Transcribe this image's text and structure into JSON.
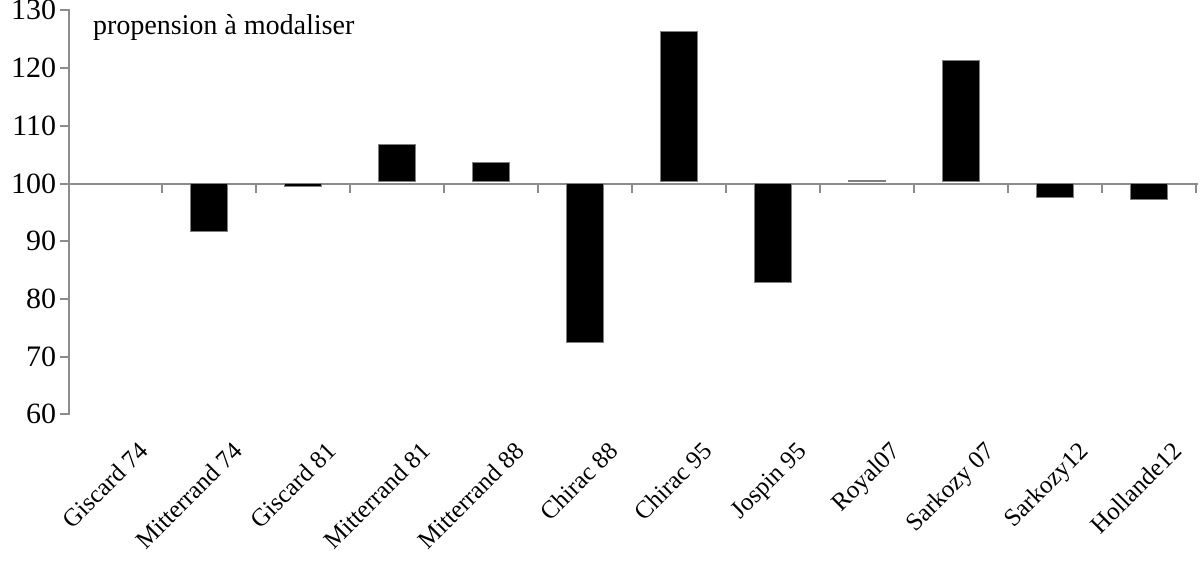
{
  "chart_data": {
    "type": "bar",
    "title": "propension à modaliser",
    "categories": [
      "Giscard 74",
      "Mitterrand 74",
      "Giscard 81",
      "Mitterrand 81",
      "Mitterrand 88",
      "Chirac 88",
      "Chirac 95",
      "Jospin 95",
      "Royal07",
      "Sarkozy 07",
      "Sarkozy12",
      "Hollande12"
    ],
    "values": [
      100,
      91.5,
      99.3,
      106.7,
      103.5,
      72.2,
      126.3,
      82.5,
      100.5,
      121.3,
      97.3,
      97.0
    ],
    "baseline": 100,
    "ylim": [
      60,
      130
    ],
    "yticks": [
      130,
      120,
      110,
      100,
      90,
      80,
      70,
      60
    ],
    "xlabel": "",
    "ylabel": "",
    "legend": "none",
    "grid": "off",
    "bar_color": "#000000",
    "bar_border_color": "#7f7f7f",
    "axis_color": "#8c8c8c",
    "text_color": "#000000"
  }
}
